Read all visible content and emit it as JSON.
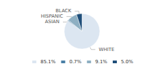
{
  "chart_data": {
    "type": "pie",
    "categories": [
      "WHITE",
      "ASIAN",
      "HISPANIC",
      "BLACK"
    ],
    "values": [
      85.1,
      0.7,
      9.1,
      5.0
    ],
    "value_labels": [
      "85.1%",
      "0.7%",
      "9.1%",
      "5.0%"
    ],
    "colors": [
      "#dce6f1",
      "#4a7fa5",
      "#8eafc2",
      "#1f4e79"
    ],
    "legend": "bottom"
  }
}
